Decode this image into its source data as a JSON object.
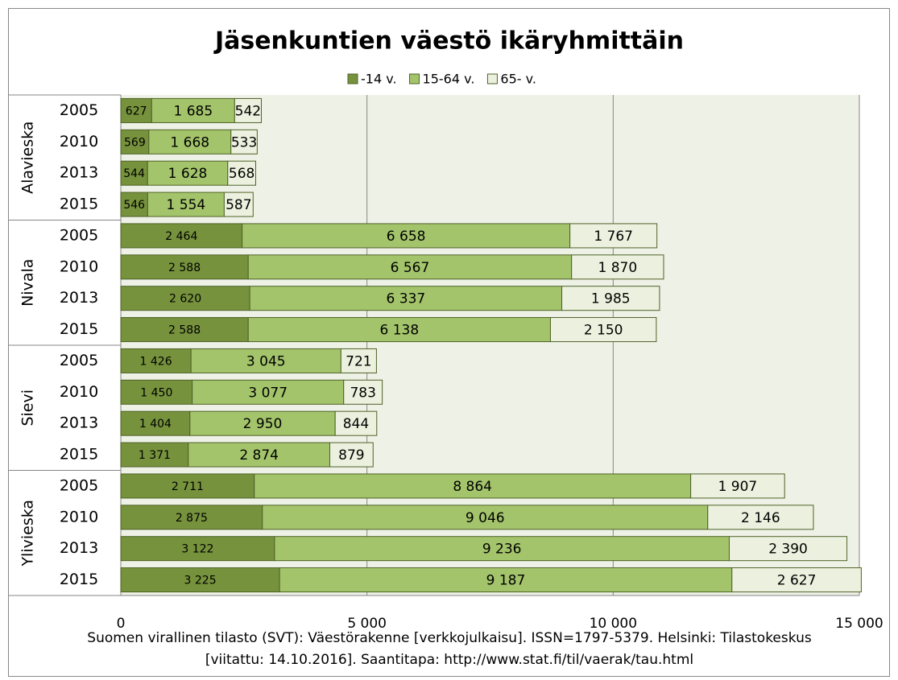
{
  "chart_data": {
    "type": "stacked-barh",
    "title": "Jäsenkuntien väestö ikäryhmittäin",
    "groups": [
      "Alavieska",
      "Nivala",
      "Sievi",
      "Ylivieska"
    ],
    "categories": [
      [
        "2005",
        "2010",
        "2013",
        "2015"
      ],
      [
        "2005",
        "2010",
        "2013",
        "2015"
      ],
      [
        "2005",
        "2010",
        "2013",
        "2015"
      ],
      [
        "2005",
        "2010",
        "2013",
        "2015"
      ]
    ],
    "series": [
      {
        "name": "-14 v.",
        "color": "#76923c",
        "values": [
          [
            627,
            569,
            544,
            546
          ],
          [
            2464,
            2588,
            2620,
            2588
          ],
          [
            1426,
            1450,
            1404,
            1371
          ],
          [
            2711,
            2875,
            3122,
            3225
          ]
        ],
        "value_labels": [
          [
            "627",
            "569",
            "544",
            "546"
          ],
          [
            "2 464",
            "2 588",
            "2 620",
            "2 588"
          ],
          [
            "1 426",
            "1 450",
            "1 404",
            "1 371"
          ],
          [
            "2 711",
            "2 875",
            "3 122",
            "3 225"
          ]
        ]
      },
      {
        "name": "15-64 v.",
        "color": "#a3c46b",
        "values": [
          [
            1685,
            1668,
            1628,
            1554
          ],
          [
            6658,
            6567,
            6337,
            6138
          ],
          [
            3045,
            3077,
            2950,
            2874
          ],
          [
            8864,
            9046,
            9236,
            9187
          ]
        ],
        "value_labels": [
          [
            "1 685",
            "1 668",
            "1 628",
            "1 554"
          ],
          [
            "6 658",
            "6 567",
            "6 337",
            "6 138"
          ],
          [
            "3 045",
            "3 077",
            "2 950",
            "2 874"
          ],
          [
            "8 864",
            "9 046",
            "9 236",
            "9 187"
          ]
        ]
      },
      {
        "name": "65- v.",
        "color": "#ebf1de",
        "values": [
          [
            542,
            533,
            568,
            587
          ],
          [
            1767,
            1870,
            1985,
            2150
          ],
          [
            721,
            783,
            844,
            879
          ],
          [
            1907,
            2146,
            2390,
            2627
          ]
        ],
        "value_labels": [
          [
            "542",
            "533",
            "568",
            "587"
          ],
          [
            "1 767",
            "1 870",
            "1 985",
            "2 150"
          ],
          [
            "721",
            "783",
            "844",
            "879"
          ],
          [
            "1 907",
            "2 146",
            "2 390",
            "2 627"
          ]
        ]
      }
    ],
    "xlim": [
      0,
      15000
    ],
    "xticks": [
      0,
      {
        "value": 5000,
        "label": "5 000"
      },
      {
        "value": 10000,
        "label": "10 000"
      },
      {
        "value": 15000,
        "label": "15 000"
      }
    ],
    "grid": true,
    "legend": "top",
    "source": [
      "Suomen virallinen tilasto (SVT): Väestörakenne [verkkojulkaisu]. ISSN=1797-5379. Helsinki: Tilastokeskus",
      "[viitattu: 14.10.2016]. Saantitapa: http://www.stat.fi/til/vaerak/tau.html"
    ]
  }
}
